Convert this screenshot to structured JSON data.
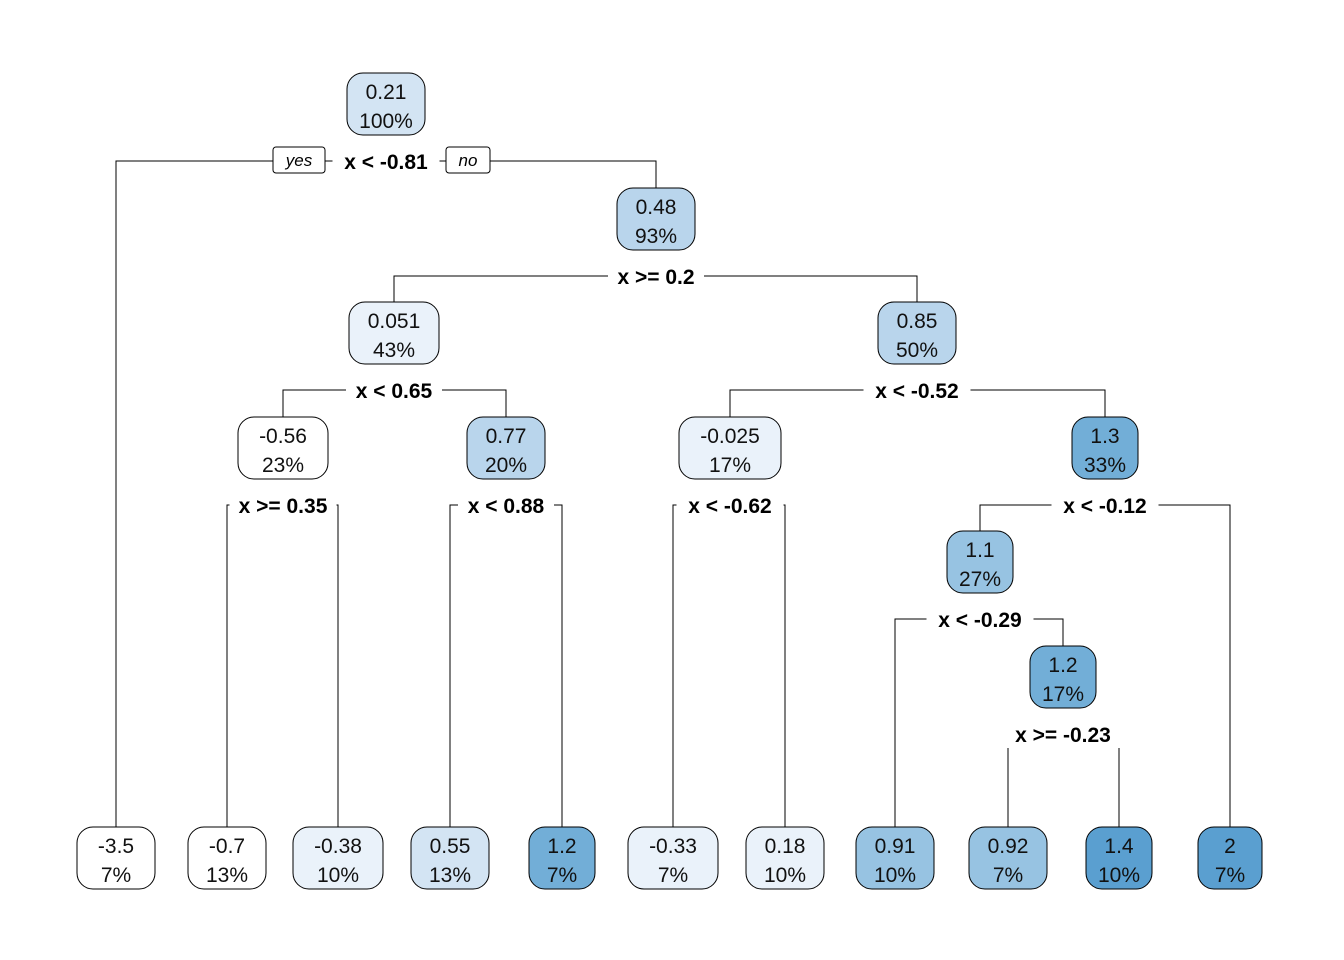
{
  "colors": {
    "scale": [
      "#ffffff",
      "#eaf2fa",
      "#d3e4f3",
      "#b9d5ec",
      "#97c3e2",
      "#72aed7",
      "#5a9fd0"
    ],
    "stroke": "#000000"
  },
  "branch_labels": {
    "yes": "yes",
    "no": "no"
  },
  "tree": {
    "nodes": [
      {
        "id": "n1",
        "value": "0.21",
        "percent": "100%",
        "shade": 2
      },
      {
        "id": "n3",
        "value": "0.48",
        "percent": "93%",
        "shade": 3
      },
      {
        "id": "n6",
        "value": "0.051",
        "percent": "43%",
        "shade": 1
      },
      {
        "id": "n7",
        "value": "0.85",
        "percent": "50%",
        "shade": 3
      },
      {
        "id": "n12",
        "value": "-0.56",
        "percent": "23%",
        "shade": 0
      },
      {
        "id": "n13",
        "value": "0.77",
        "percent": "20%",
        "shade": 3
      },
      {
        "id": "n14",
        "value": "-0.025",
        "percent": "17%",
        "shade": 1
      },
      {
        "id": "n15",
        "value": "1.3",
        "percent": "33%",
        "shade": 5
      },
      {
        "id": "n30",
        "value": "1.1",
        "percent": "27%",
        "shade": 4
      },
      {
        "id": "n61",
        "value": "1.2",
        "percent": "17%",
        "shade": 5
      },
      {
        "id": "L1",
        "value": "-3.5",
        "percent": "7%",
        "shade": 0
      },
      {
        "id": "L2",
        "value": "-0.7",
        "percent": "13%",
        "shade": 0
      },
      {
        "id": "L3",
        "value": "-0.38",
        "percent": "10%",
        "shade": 1
      },
      {
        "id": "L4",
        "value": "0.55",
        "percent": "13%",
        "shade": 2
      },
      {
        "id": "L5",
        "value": "1.2",
        "percent": "7%",
        "shade": 5
      },
      {
        "id": "L6",
        "value": "-0.33",
        "percent": "7%",
        "shade": 1
      },
      {
        "id": "L7",
        "value": "0.18",
        "percent": "10%",
        "shade": 1
      },
      {
        "id": "L8",
        "value": "0.91",
        "percent": "10%",
        "shade": 4
      },
      {
        "id": "L9",
        "value": "0.92",
        "percent": "7%",
        "shade": 4
      },
      {
        "id": "L10",
        "value": "1.4",
        "percent": "10%",
        "shade": 6
      },
      {
        "id": "L11",
        "value": "2",
        "percent": "7%",
        "shade": 6
      }
    ],
    "splits": [
      {
        "node": "n1",
        "label": "x < -0.81",
        "left": "L1",
        "right": "n3"
      },
      {
        "node": "n3",
        "label": "x >= 0.2",
        "left": "n6",
        "right": "n7"
      },
      {
        "node": "n6",
        "label": "x < 0.65",
        "left": "n12",
        "right": "n13"
      },
      {
        "node": "n7",
        "label": "x < -0.52",
        "left": "n14",
        "right": "n15"
      },
      {
        "node": "n12",
        "label": "x >= 0.35",
        "left": "L2",
        "right": "L3"
      },
      {
        "node": "n13",
        "label": "x < 0.88",
        "left": "L4",
        "right": "L5"
      },
      {
        "node": "n14",
        "label": "x < -0.62",
        "left": "L6",
        "right": "L7"
      },
      {
        "node": "n15",
        "label": "x < -0.12",
        "left": "n30",
        "right": "L11"
      },
      {
        "node": "n30",
        "label": "x < -0.29",
        "left": "L8",
        "right": "n61"
      },
      {
        "node": "n61",
        "label": "x >= -0.23",
        "left": "L9",
        "right": "L10"
      }
    ]
  }
}
